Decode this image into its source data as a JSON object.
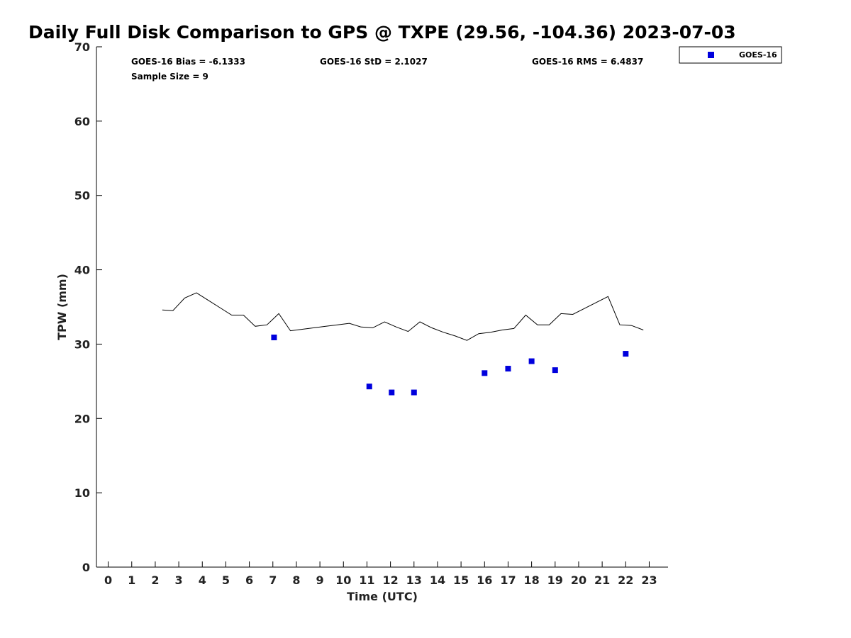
{
  "chart_data": {
    "type": "scatter",
    "title": "Daily Full Disk Comparison to GPS @ TXPE (29.56, -104.36) 2023-07-03",
    "xlabel": "Time (UTC)",
    "ylabel": "TPW (mm)",
    "xlim": [
      -0.5,
      23.8
    ],
    "ylim": [
      0,
      70
    ],
    "xticks": [
      "0",
      "1",
      "2",
      "3",
      "4",
      "5",
      "6",
      "7",
      "8",
      "9",
      "10",
      "11",
      "12",
      "13",
      "14",
      "15",
      "16",
      "17",
      "18",
      "19",
      "20",
      "21",
      "22",
      "23"
    ],
    "yticks": [
      "0",
      "10",
      "20",
      "30",
      "40",
      "50",
      "60",
      "70"
    ],
    "grid": false,
    "legend_position": "top-right",
    "annotations": {
      "bias": "GOES-16 Bias = -6.1333",
      "std": "GOES-16 StD = 2.1027",
      "rms": "GOES-16 RMS = 6.4837",
      "sample": "Sample Size = 9"
    },
    "series": [
      {
        "name": "GOES-16",
        "kind": "scatter",
        "color": "#0000dd",
        "x": [
          7.05,
          11.1,
          12.05,
          13.0,
          16.0,
          17.0,
          18.0,
          19.0,
          22.0
        ],
        "y": [
          30.9,
          24.3,
          23.5,
          23.5,
          26.1,
          26.7,
          27.7,
          26.5,
          28.7
        ]
      },
      {
        "kind": "line",
        "color": "#000000",
        "x": [
          2.3,
          2.75,
          3.25,
          3.75,
          4.25,
          4.75,
          5.25,
          5.75,
          6.25,
          6.75,
          7.25,
          7.75,
          8.25,
          8.75,
          9.25,
          9.75,
          10.25,
          10.75,
          11.25,
          11.75,
          12.25,
          12.75,
          13.25,
          13.75,
          14.25,
          14.75,
          15.25,
          15.75,
          16.25,
          16.75,
          17.25,
          17.75,
          18.25,
          18.75,
          19.25,
          19.75,
          20.25,
          20.75,
          21.25,
          21.75,
          22.25,
          22.75
        ],
        "y": [
          34.6,
          34.5,
          36.2,
          36.9,
          35.9,
          34.9,
          33.9,
          33.9,
          32.4,
          32.6,
          34.1,
          31.8,
          32.0,
          32.2,
          32.4,
          32.6,
          32.8,
          32.3,
          32.2,
          33.0,
          32.3,
          31.7,
          33.0,
          32.2,
          31.6,
          31.1,
          30.5,
          31.4,
          31.6,
          31.9,
          32.1,
          33.9,
          32.6,
          32.6,
          34.1,
          34.0,
          34.8,
          35.6,
          36.4,
          32.6,
          32.5,
          31.9
        ]
      }
    ]
  }
}
